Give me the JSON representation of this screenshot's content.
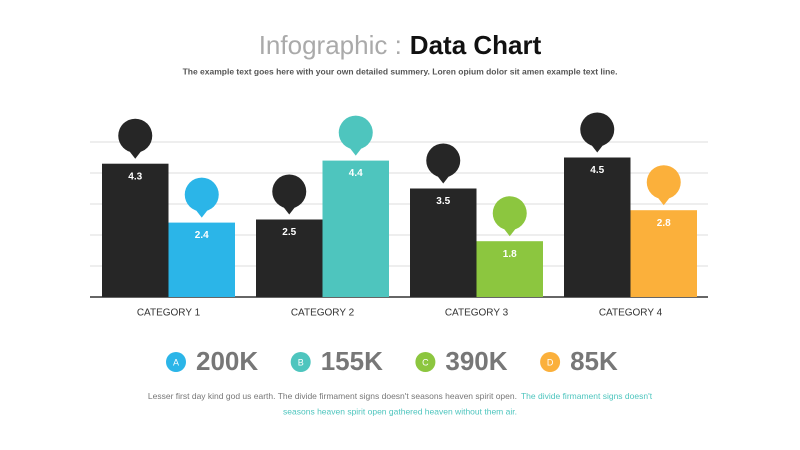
{
  "chart_data": {
    "type": "bar",
    "title_light": "Infographic :",
    "title_bold": "Data Chart",
    "subtitle": "The example text goes here with your own detailed summery.  Loren opium dolor sit amen example text line.",
    "categories": [
      "CATEGORY 1",
      "CATEGORY 2",
      "CATEGORY 3",
      "CATEGORY 4"
    ],
    "series": [
      {
        "color": "#262626",
        "values": [
          4.3,
          2.5,
          3.5,
          4.5
        ]
      },
      {
        "colors": [
          "#2bb5e8",
          "#4ec5be",
          "#8cc63f",
          "#fbb03b"
        ],
        "values": [
          2.4,
          4.4,
          1.8,
          2.8
        ]
      }
    ],
    "ylim": [
      0,
      5
    ],
    "yticks": [
      0,
      1,
      2,
      3,
      4,
      5
    ],
    "grid": true
  },
  "stats": [
    {
      "letter": "A",
      "value": "200K",
      "color": "#2bb5e8"
    },
    {
      "letter": "B",
      "value": "155K",
      "color": "#4ec5be"
    },
    {
      "letter": "C",
      "value": "390K",
      "color": "#8cc63f"
    },
    {
      "letter": "D",
      "value": "85K",
      "color": "#fbb03b"
    }
  ],
  "footer": {
    "gray": "Lesser first day kind god us earth. The divide firmament signs doesn't seasons heaven spirit open.",
    "teal_1": "The divide firmament signs doesn't",
    "teal_2": "seasons heaven spirit open gathered heaven without them air."
  }
}
